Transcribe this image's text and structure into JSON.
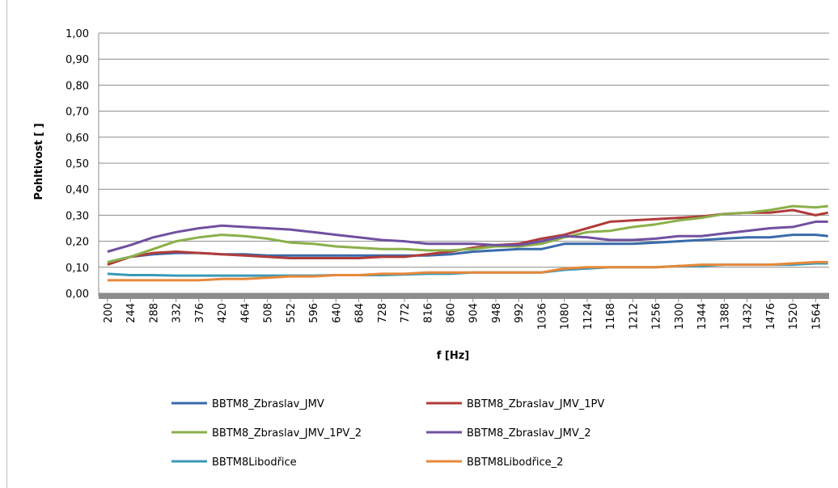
{
  "chart_data": {
    "type": "line",
    "y_label": "Pohltivost [ ]",
    "x_label": "f [Hz]",
    "x": [
      200,
      244,
      288,
      332,
      376,
      420,
      464,
      508,
      552,
      596,
      640,
      684,
      728,
      772,
      816,
      860,
      904,
      948,
      992,
      1036,
      1080,
      1124,
      1168,
      1212,
      1256,
      1300,
      1344,
      1388,
      1432,
      1476,
      1520,
      1564,
      1588
    ],
    "xlim": [
      183,
      1590
    ],
    "xticks": [
      200,
      244,
      288,
      332,
      376,
      420,
      464,
      508,
      552,
      596,
      640,
      684,
      728,
      772,
      816,
      860,
      904,
      948,
      992,
      1036,
      1080,
      1124,
      1168,
      1212,
      1256,
      1300,
      1344,
      1388,
      1432,
      1476,
      1520,
      1564
    ],
    "ylim": [
      0,
      1
    ],
    "yticks": [
      {
        "value": 0,
        "label": "0,00"
      },
      {
        "value": 0.1,
        "label": "0,10"
      },
      {
        "value": 0.2,
        "label": "0,20"
      },
      {
        "value": 0.3,
        "label": "0,30"
      },
      {
        "value": 0.4,
        "label": "0,40"
      },
      {
        "value": 0.5,
        "label": "0,50"
      },
      {
        "value": 0.6,
        "label": "0,60"
      },
      {
        "value": 0.7,
        "label": "0,70"
      },
      {
        "value": 0.8,
        "label": "0,80"
      },
      {
        "value": 0.9,
        "label": "0,90"
      },
      {
        "value": 1,
        "label": "1,00"
      }
    ],
    "grid": true,
    "legend": "bottom",
    "series": [
      {
        "name": "BBTM8_Zbraslav_JMV",
        "color": "#3a6aaa",
        "values": [
          0.12,
          0.14,
          0.15,
          0.155,
          0.155,
          0.15,
          0.15,
          0.145,
          0.145,
          0.145,
          0.145,
          0.145,
          0.145,
          0.145,
          0.145,
          0.15,
          0.16,
          0.165,
          0.17,
          0.17,
          0.19,
          0.19,
          0.19,
          0.19,
          0.195,
          0.2,
          0.205,
          0.21,
          0.215,
          0.215,
          0.225,
          0.225,
          0.22
        ]
      },
      {
        "name": "BBTM8_Zbraslav_JMV_1PV",
        "color": "#b03c3a",
        "values": [
          0.11,
          0.14,
          0.155,
          0.16,
          0.155,
          0.15,
          0.145,
          0.14,
          0.135,
          0.135,
          0.135,
          0.135,
          0.14,
          0.14,
          0.15,
          0.16,
          0.175,
          0.185,
          0.19,
          0.21,
          0.225,
          0.25,
          0.275,
          0.28,
          0.285,
          0.29,
          0.295,
          0.305,
          0.31,
          0.31,
          0.32,
          0.3,
          0.31
        ]
      },
      {
        "name": "BBTM8_Zbraslav_JMV_1PV_2",
        "color": "#8ab04a",
        "values": [
          0.12,
          0.14,
          0.17,
          0.2,
          0.215,
          0.225,
          0.22,
          0.21,
          0.195,
          0.19,
          0.18,
          0.175,
          0.17,
          0.17,
          0.165,
          0.165,
          0.17,
          0.18,
          0.18,
          0.19,
          0.215,
          0.235,
          0.24,
          0.255,
          0.265,
          0.28,
          0.29,
          0.305,
          0.31,
          0.32,
          0.335,
          0.33,
          0.335
        ]
      },
      {
        "name": "BBTM8_Zbraslav_JMV_2",
        "color": "#7050a0",
        "values": [
          0.16,
          0.185,
          0.215,
          0.235,
          0.25,
          0.26,
          0.255,
          0.25,
          0.245,
          0.235,
          0.225,
          0.215,
          0.205,
          0.2,
          0.19,
          0.19,
          0.19,
          0.185,
          0.185,
          0.2,
          0.22,
          0.215,
          0.205,
          0.205,
          0.21,
          0.22,
          0.22,
          0.23,
          0.24,
          0.25,
          0.255,
          0.275,
          0.275
        ]
      },
      {
        "name": "BBTM8Libodřice",
        "color": "#3a9ab8",
        "values": [
          0.075,
          0.07,
          0.07,
          0.068,
          0.068,
          0.068,
          0.068,
          0.068,
          0.068,
          0.068,
          0.07,
          0.07,
          0.07,
          0.072,
          0.075,
          0.075,
          0.08,
          0.08,
          0.08,
          0.08,
          0.09,
          0.095,
          0.1,
          0.1,
          0.1,
          0.105,
          0.105,
          0.11,
          0.11,
          0.11,
          0.11,
          0.115,
          0.115
        ]
      },
      {
        "name": "BBTM8Libodřice_2",
        "color": "#e8883a",
        "values": [
          0.05,
          0.05,
          0.05,
          0.05,
          0.05,
          0.055,
          0.055,
          0.06,
          0.065,
          0.065,
          0.07,
          0.07,
          0.075,
          0.075,
          0.08,
          0.08,
          0.08,
          0.08,
          0.08,
          0.08,
          0.095,
          0.1,
          0.1,
          0.1,
          0.1,
          0.105,
          0.11,
          0.11,
          0.11,
          0.11,
          0.115,
          0.12,
          0.12
        ]
      }
    ]
  }
}
